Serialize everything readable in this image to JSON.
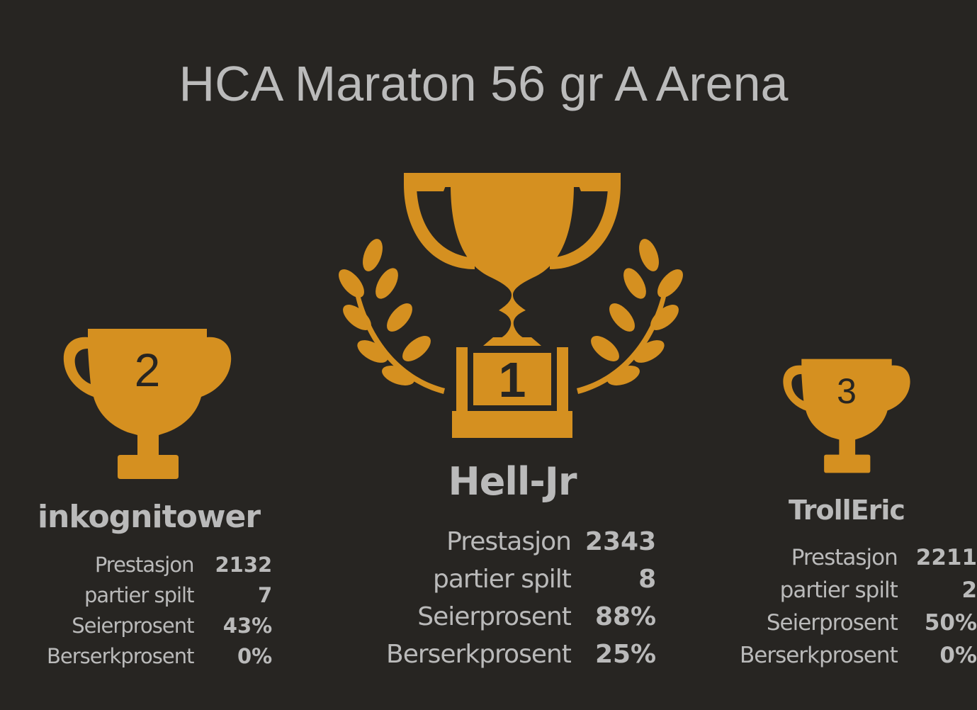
{
  "title": "HCA Maraton 56 gr A Arena",
  "colors": {
    "background": "#272522",
    "trophy": "#d59020",
    "text": "#bababa"
  },
  "podium": {
    "first": {
      "rank": "1",
      "icon": "trophy-with-laurels-icon",
      "name": "Hell-Jr",
      "stats": [
        {
          "label": "Prestasjon",
          "value": "2343"
        },
        {
          "label": "partier spilt",
          "value": "8"
        },
        {
          "label": "Seierprosent",
          "value": "88%"
        },
        {
          "label": "Berserkprosent",
          "value": "25%"
        }
      ]
    },
    "second": {
      "rank": "2",
      "icon": "trophy-icon",
      "name": "inkognitower",
      "stats": [
        {
          "label": "Prestasjon",
          "value": "2132"
        },
        {
          "label": "partier spilt",
          "value": "7"
        },
        {
          "label": "Seierprosent",
          "value": "43%"
        },
        {
          "label": "Berserkprosent",
          "value": "0%"
        }
      ]
    },
    "third": {
      "rank": "3",
      "icon": "trophy-icon",
      "name": "TrollEric",
      "stats": [
        {
          "label": "Prestasjon",
          "value": "2211"
        },
        {
          "label": "partier spilt",
          "value": "2"
        },
        {
          "label": "Seierprosent",
          "value": "50%"
        },
        {
          "label": "Berserkprosent",
          "value": "0%"
        }
      ]
    }
  }
}
